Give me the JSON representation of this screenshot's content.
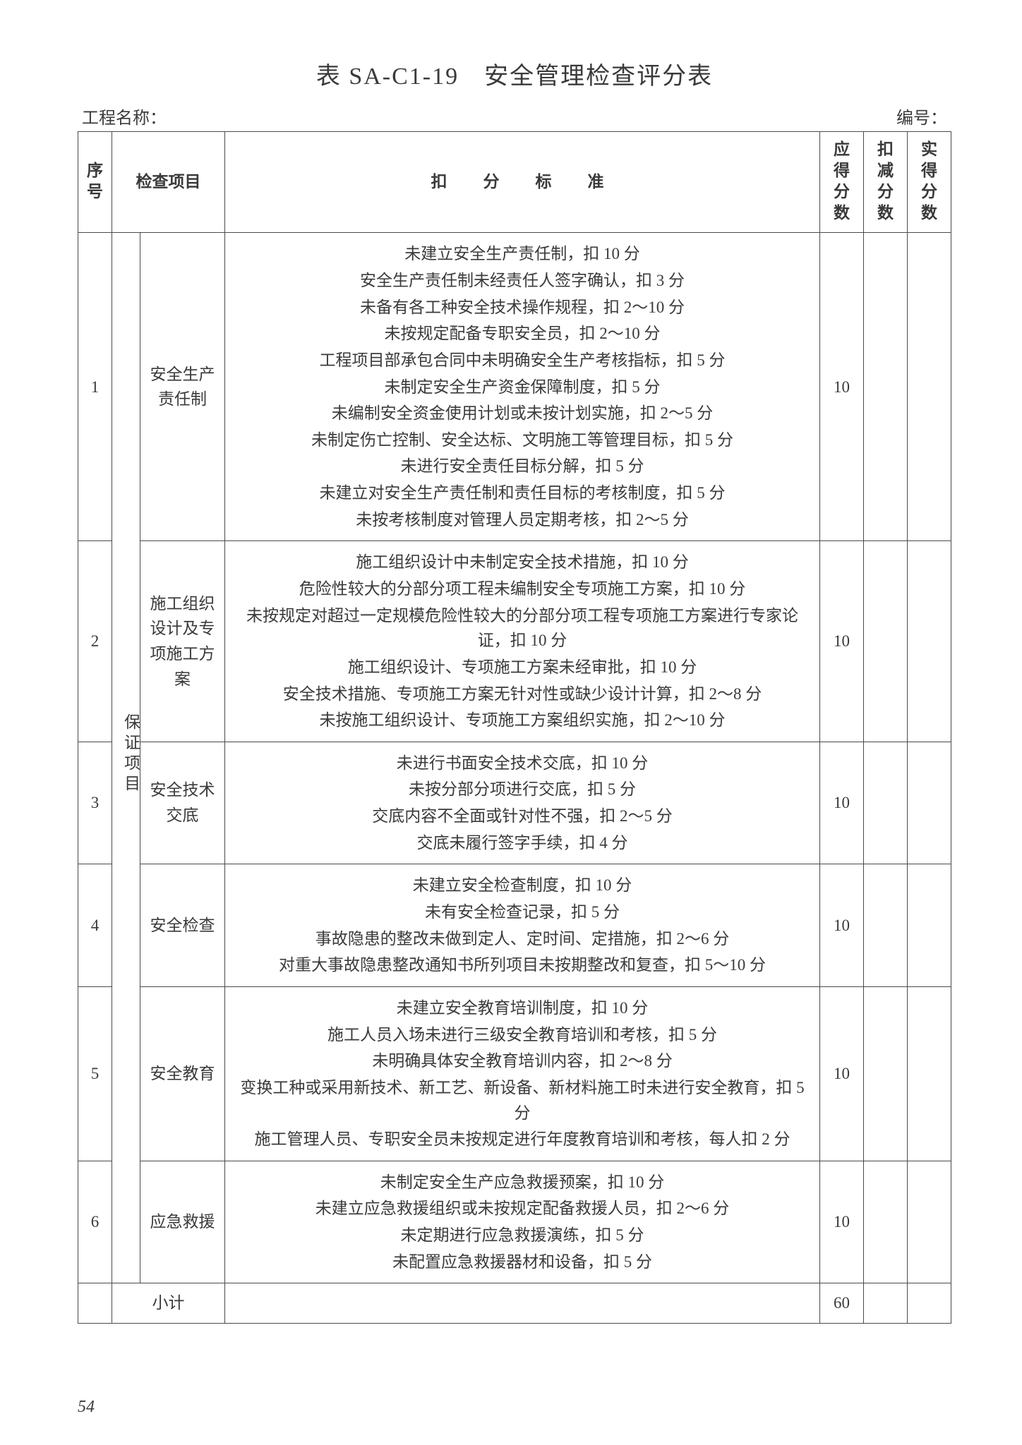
{
  "title": "表 SA-C1-19　安全管理检查评分表",
  "meta": {
    "project_label": "工程名称：",
    "number_label": "编号："
  },
  "headers": {
    "seq": "序号",
    "item": "检查项目",
    "criteria": "扣　分　标　准",
    "score_due": "应得分数",
    "score_deduct": "扣减分数",
    "score_actual": "实得分数"
  },
  "category": "保证项目",
  "rows": [
    {
      "seq": "1",
      "item": "安全生产责任制",
      "score": "10",
      "lines": [
        "未建立安全生产责任制，扣 10 分",
        "安全生产责任制未经责任人签字确认，扣 3 分",
        "未备有各工种安全技术操作规程，扣 2～10 分",
        "未按规定配备专职安全员，扣 2～10 分",
        "工程项目部承包合同中未明确安全生产考核指标，扣 5 分",
        "未制定安全生产资金保障制度，扣 5 分",
        "未编制安全资金使用计划或未按计划实施，扣 2～5 分",
        "未制定伤亡控制、安全达标、文明施工等管理目标，扣 5 分",
        "未进行安全责任目标分解，扣 5 分",
        "未建立对安全生产责任制和责任目标的考核制度，扣 5 分",
        "未按考核制度对管理人员定期考核，扣 2～5 分"
      ]
    },
    {
      "seq": "2",
      "item": "施工组织设计及专项施工方案",
      "score": "10",
      "lines": [
        "施工组织设计中未制定安全技术措施，扣 10 分",
        "危险性较大的分部分项工程未编制安全专项施工方案，扣 10 分",
        "未按规定对超过一定规模危险性较大的分部分项工程专项施工方案进行专家论证，扣 10 分",
        "施工组织设计、专项施工方案未经审批，扣 10 分",
        "安全技术措施、专项施工方案无针对性或缺少设计计算，扣 2～8 分",
        "未按施工组织设计、专项施工方案组织实施，扣 2～10 分"
      ]
    },
    {
      "seq": "3",
      "item": "安全技术交底",
      "score": "10",
      "lines": [
        "未进行书面安全技术交底，扣 10 分",
        "未按分部分项进行交底，扣 5 分",
        "交底内容不全面或针对性不强，扣 2～5 分",
        "交底未履行签字手续，扣 4 分"
      ]
    },
    {
      "seq": "4",
      "item": "安全检查",
      "score": "10",
      "lines": [
        "未建立安全检查制度，扣 10 分",
        "未有安全检查记录，扣 5 分",
        "事故隐患的整改未做到定人、定时间、定措施，扣 2～6 分",
        "对重大事故隐患整改通知书所列项目未按期整改和复查，扣 5～10 分"
      ]
    },
    {
      "seq": "5",
      "item": "安全教育",
      "score": "10",
      "lines": [
        "未建立安全教育培训制度，扣 10 分",
        "施工人员入场未进行三级安全教育培训和考核，扣 5 分",
        "未明确具体安全教育培训内容，扣 2～8 分",
        "变换工种或采用新技术、新工艺、新设备、新材料施工时未进行安全教育，扣 5 分",
        "施工管理人员、专职安全员未按规定进行年度教育培训和考核，每人扣 2 分"
      ]
    },
    {
      "seq": "6",
      "item": "应急救援",
      "score": "10",
      "lines": [
        "未制定安全生产应急救援预案，扣 10 分",
        "未建立应急救援组织或未按规定配备救援人员，扣 2～6 分",
        "未定期进行应急救援演练，扣 5 分",
        "未配置应急救援器材和设备，扣 5 分"
      ]
    }
  ],
  "subtotal": {
    "label": "小计",
    "score": "60"
  },
  "page_number": "54"
}
